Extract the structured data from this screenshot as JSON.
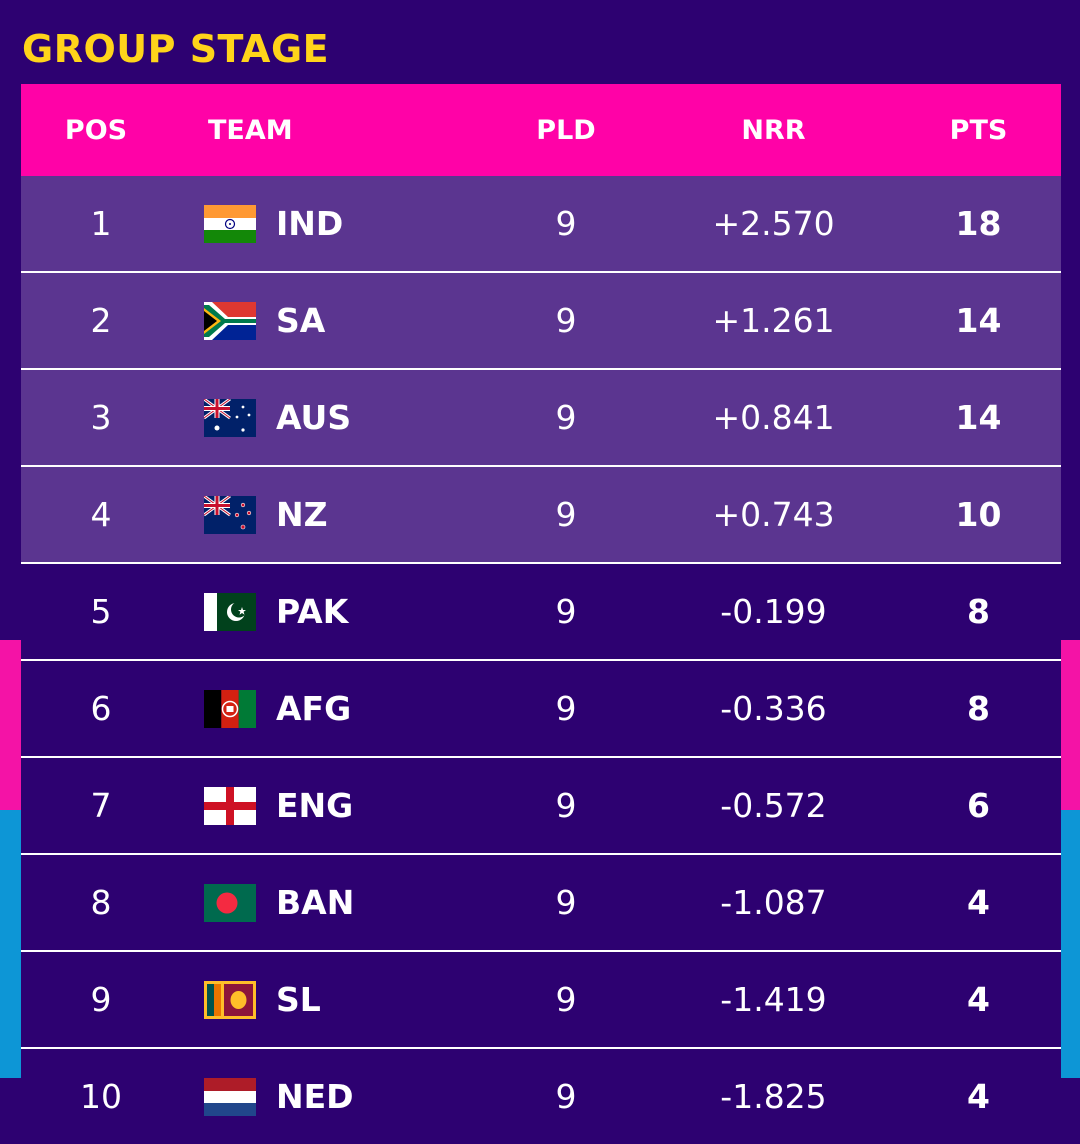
{
  "title": "GROUP STAGE",
  "headers": {
    "pos": "POS",
    "team": "TEAM",
    "pld": "PLD",
    "nrr": "NRR",
    "pts": "PTS"
  },
  "rows": [
    {
      "pos": "1",
      "team": "IND",
      "flag": "india-flag-icon",
      "pld": "9",
      "nrr": "+2.570",
      "pts": "18"
    },
    {
      "pos": "2",
      "team": "SA",
      "flag": "south-africa-flag-icon",
      "pld": "9",
      "nrr": "+1.261",
      "pts": "14"
    },
    {
      "pos": "3",
      "team": "AUS",
      "flag": "australia-flag-icon",
      "pld": "9",
      "nrr": "+0.841",
      "pts": "14"
    },
    {
      "pos": "4",
      "team": "NZ",
      "flag": "new-zealand-flag-icon",
      "pld": "9",
      "nrr": "+0.743",
      "pts": "10"
    },
    {
      "pos": "5",
      "team": "PAK",
      "flag": "pakistan-flag-icon",
      "pld": "9",
      "nrr": "-0.199",
      "pts": "8"
    },
    {
      "pos": "6",
      "team": "AFG",
      "flag": "afghanistan-flag-icon",
      "pld": "9",
      "nrr": "-0.336",
      "pts": "8"
    },
    {
      "pos": "7",
      "team": "ENG",
      "flag": "england-flag-icon",
      "pld": "9",
      "nrr": "-0.572",
      "pts": "6"
    },
    {
      "pos": "8",
      "team": "BAN",
      "flag": "bangladesh-flag-icon",
      "pld": "9",
      "nrr": "-1.087",
      "pts": "4"
    },
    {
      "pos": "9",
      "team": "SL",
      "flag": "sri-lanka-flag-icon",
      "pld": "9",
      "nrr": "-1.419",
      "pts": "4"
    },
    {
      "pos": "10",
      "team": "NED",
      "flag": "netherlands-flag-icon",
      "pld": "9",
      "nrr": "-1.825",
      "pts": "4"
    }
  ],
  "colors": {
    "background": "#2d0171",
    "header": "#ff02a7",
    "qualified_row": "#5b3590",
    "title": "#ffd41a",
    "accent_pink": "#f413a6",
    "accent_blue": "#0d96d6"
  }
}
